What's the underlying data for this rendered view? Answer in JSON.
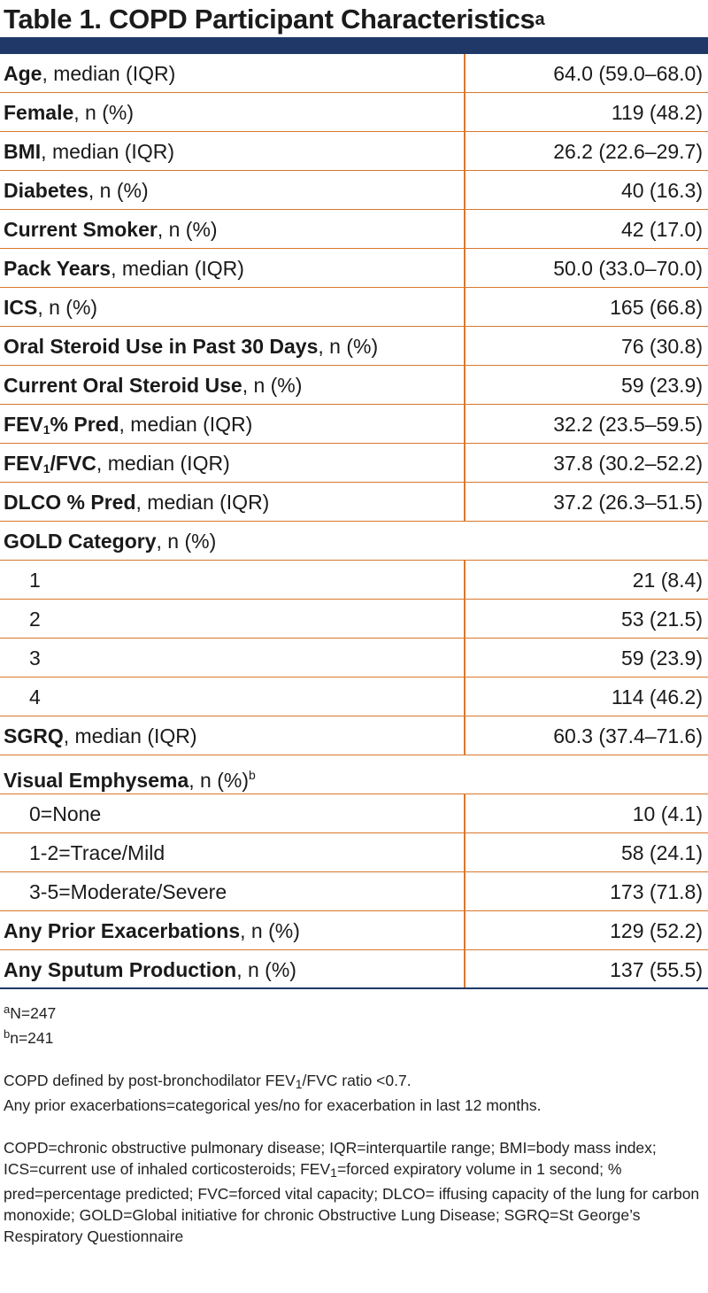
{
  "title": {
    "text": "Table 1. COPD Participant Characteristics",
    "sup": "a"
  },
  "rows": [
    {
      "bold": "Age",
      "rest": ", median (IQR)",
      "value": "64.0 (59.0–68.0)"
    },
    {
      "bold": "Female",
      "rest": ", n (%)",
      "value": "119 (48.2)"
    },
    {
      "bold": "BMI",
      "rest": ", median (IQR)",
      "value": "26.2 (22.6–29.7)"
    },
    {
      "bold": "Diabetes",
      "rest": ", n (%)",
      "value": "40 (16.3)"
    },
    {
      "bold": "Current Smoker",
      "rest": ", n (%)",
      "value": "42 (17.0)"
    },
    {
      "bold": "Pack Years",
      "rest": ", median (IQR)",
      "value": "50.0 (33.0–70.0)"
    },
    {
      "bold": "ICS",
      "rest": ", n (%)",
      "value": "165 (66.8)"
    },
    {
      "bold": "Oral Steroid Use in Past 30 Days",
      "rest": ", n (%)",
      "value": "76 (30.8)"
    },
    {
      "bold": "Current Oral Steroid Use",
      "rest": ", n (%)",
      "value": "59 (23.9)"
    },
    {
      "bold_a": "FEV",
      "bold_sub": "1",
      "bold_b": "% Pred",
      "rest": ", median (IQR)",
      "value": "32.2 (23.5–59.5)"
    },
    {
      "bold_a": "FEV",
      "bold_sub": "1",
      "bold_b": "/FVC",
      "rest": ", median (IQR)",
      "value": "37.8 (30.2–52.2)"
    },
    {
      "bold": "DLCO % Pred",
      "rest": ", median (IQR)",
      "value": "37.2 (26.3–51.5)"
    },
    {
      "bold": "GOLD Category",
      "rest": ", n (%)"
    },
    {
      "label": "1",
      "value": "21 (8.4)"
    },
    {
      "label": "2",
      "value": "53 (21.5)"
    },
    {
      "label": "3",
      "value": "59 (23.9)"
    },
    {
      "label": "4",
      "value": "114 (46.2)"
    },
    {
      "bold": "SGRQ",
      "rest": ", median (IQR)",
      "value": "60.3 (37.4–71.6)"
    },
    {
      "bold": "Visual Emphysema",
      "rest": ", n (%)",
      "sup": "b"
    },
    {
      "label": "0=None",
      "value": "10 (4.1)"
    },
    {
      "label": "1-2=Trace/Mild",
      "value": "58 (24.1)"
    },
    {
      "label": "3-5=Moderate/Severe",
      "value": "173 (71.8)"
    },
    {
      "bold": "Any Prior Exacerbations",
      "rest": ", n (%)",
      "value": "129 (52.2)"
    },
    {
      "bold": "Any Sputum Production",
      "rest": ", n (%)",
      "value": "137 (55.5)"
    }
  ],
  "footnotes": {
    "a_mark": "a",
    "a_text": "N=247",
    "b_mark": "b",
    "b_text": "n=241"
  },
  "notes": {
    "copd_def_a": "COPD defined by post-bronchodilator FEV",
    "copd_def_sub": "1",
    "copd_def_b": "/FVC ratio <0.7.",
    "exac_def": "Any prior exacerbations=categorical yes/no for exacerbation in last 12 months.",
    "abbr_a": "COPD=chronic obstructive pulmonary disease; IQR=interquartile range; BMI=body mass index; ICS=current use of inhaled corticosteroids; FEV",
    "abbr_sub": "1",
    "abbr_b": "=forced expiratory volume in 1 second; % pred=percentage predicted; FVC=forced vital capacity; DLCO= iffusing capacity of the lung for carbon monoxide; GOLD=Global initiative for chronic Obstructive Lung Disease; SGRQ=St George’s Respiratory Questionnaire"
  },
  "colors": {
    "navy": "#1f3868",
    "orange": "#d9782d"
  }
}
